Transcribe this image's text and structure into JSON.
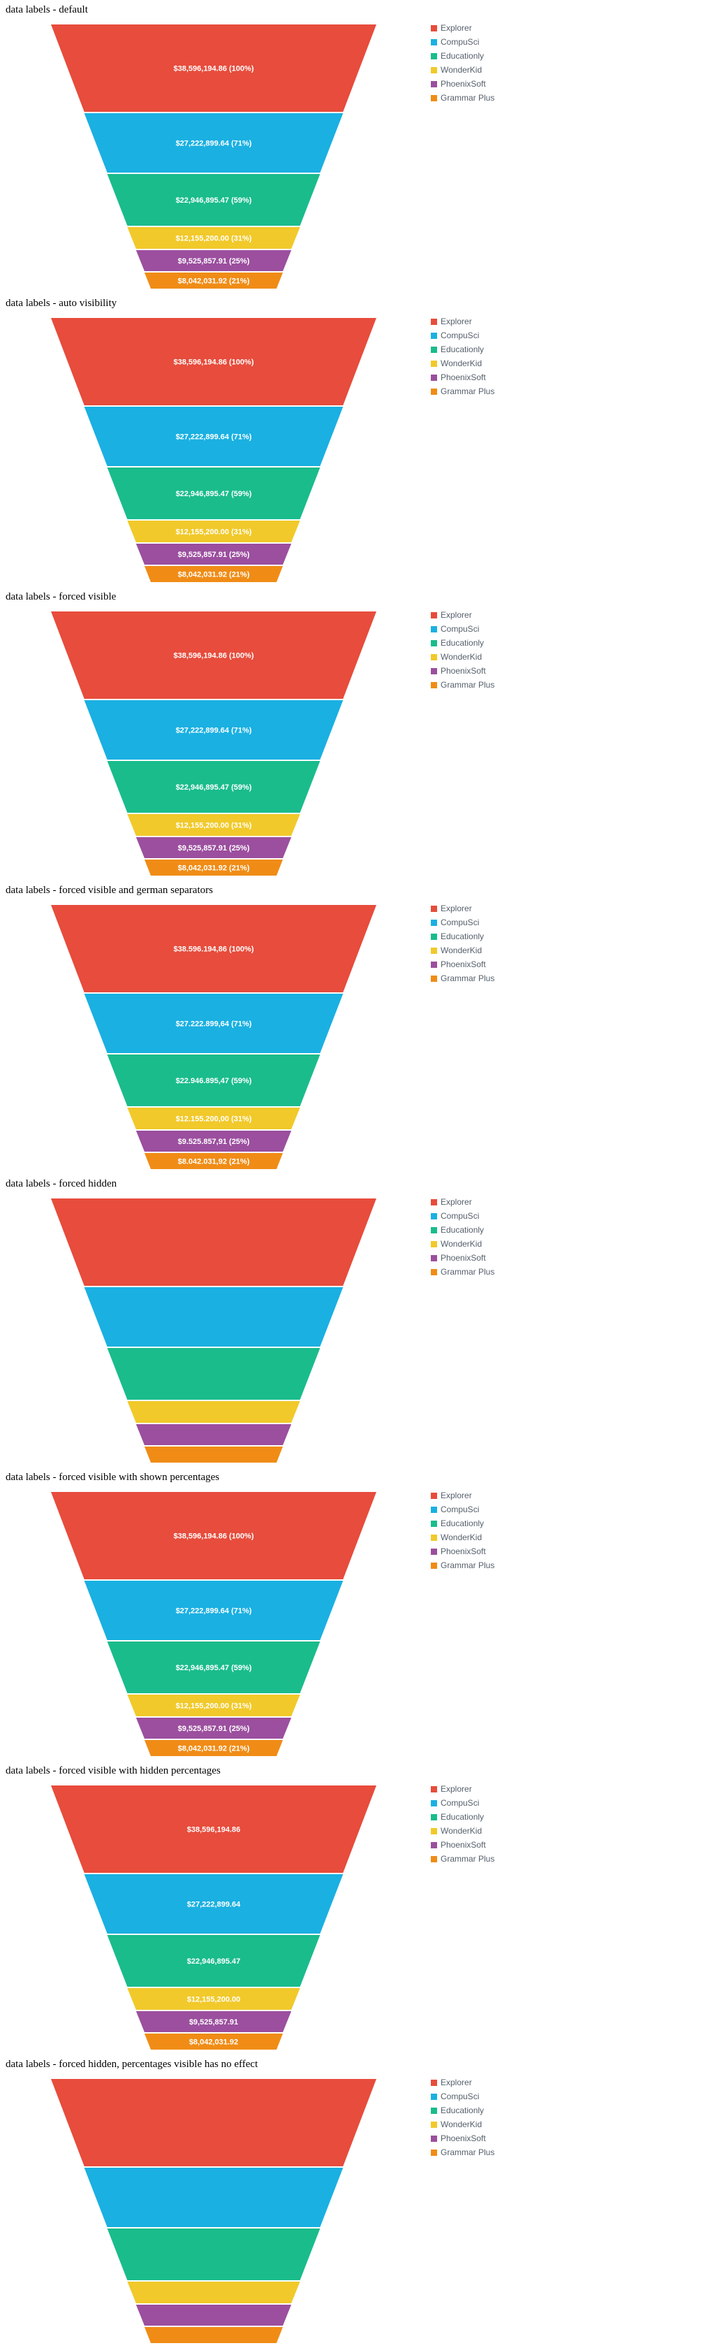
{
  "chart_data": [
    {
      "type": "funnel",
      "title": "data labels - default",
      "categories": [
        "Explorer",
        "CompuSci",
        "Educationly",
        "WonderKid",
        "PhoenixSoft",
        "Grammar Plus"
      ],
      "values": [
        38596194.86,
        27222899.64,
        22946895.47,
        12155200,
        9525857.91,
        8042031.92
      ],
      "percentages": [
        100,
        71,
        59,
        31,
        25,
        21
      ],
      "data_labels": [
        "$38,596,194.86 (100%)",
        "$27,222,899.64 (71%)",
        "$22,946,895.47 (59%)",
        "$12,155,200.00 (31%)",
        "$9,525,857.91 (25%)",
        "$8,042,031.92 (21%)"
      ],
      "show_labels": true,
      "legend": "top-right"
    },
    {
      "type": "funnel",
      "title": "data labels - auto visibility",
      "categories": [
        "Explorer",
        "CompuSci",
        "Educationly",
        "WonderKid",
        "PhoenixSoft",
        "Grammar Plus"
      ],
      "values": [
        38596194.86,
        27222899.64,
        22946895.47,
        12155200,
        9525857.91,
        8042031.92
      ],
      "percentages": [
        100,
        71,
        59,
        31,
        25,
        21
      ],
      "data_labels": [
        "$38,596,194.86 (100%)",
        "$27,222,899.64 (71%)",
        "$22,946,895.47 (59%)",
        "$12,155,200.00 (31%)",
        "$9,525,857.91 (25%)",
        "$8,042,031.92 (21%)"
      ],
      "show_labels": true,
      "legend": "top-right"
    },
    {
      "type": "funnel",
      "title": "data labels - forced visible",
      "categories": [
        "Explorer",
        "CompuSci",
        "Educationly",
        "WonderKid",
        "PhoenixSoft",
        "Grammar Plus"
      ],
      "values": [
        38596194.86,
        27222899.64,
        22946895.47,
        12155200,
        9525857.91,
        8042031.92
      ],
      "percentages": [
        100,
        71,
        59,
        31,
        25,
        21
      ],
      "data_labels": [
        "$38,596,194.86 (100%)",
        "$27,222,899.64 (71%)",
        "$22,946,895.47 (59%)",
        "$12,155,200.00 (31%)",
        "$9,525,857.91 (25%)",
        "$8,042,031.92 (21%)"
      ],
      "show_labels": true,
      "legend": "top-right"
    },
    {
      "type": "funnel",
      "title": "data labels - forced visible and german separators",
      "categories": [
        "Explorer",
        "CompuSci",
        "Educationly",
        "WonderKid",
        "PhoenixSoft",
        "Grammar Plus"
      ],
      "values": [
        38596194.86,
        27222899.64,
        22946895.47,
        12155200,
        9525857.91,
        8042031.92
      ],
      "percentages": [
        100,
        71,
        59,
        31,
        25,
        21
      ],
      "data_labels": [
        "$38.596.194,86 (100%)",
        "$27.222.899,64 (71%)",
        "$22.946.895,47 (59%)",
        "$12.155.200,00 (31%)",
        "$9.525.857,91 (25%)",
        "$8.042.031,92 (21%)"
      ],
      "show_labels": true,
      "legend": "top-right"
    },
    {
      "type": "funnel",
      "title": "data labels - forced hidden",
      "categories": [
        "Explorer",
        "CompuSci",
        "Educationly",
        "WonderKid",
        "PhoenixSoft",
        "Grammar Plus"
      ],
      "values": [
        38596194.86,
        27222899.64,
        22946895.47,
        12155200,
        9525857.91,
        8042031.92
      ],
      "percentages": [
        100,
        71,
        59,
        31,
        25,
        21
      ],
      "data_labels": [],
      "show_labels": false,
      "legend": "top-right"
    },
    {
      "type": "funnel",
      "title": "data labels - forced visible with shown percentages",
      "categories": [
        "Explorer",
        "CompuSci",
        "Educationly",
        "WonderKid",
        "PhoenixSoft",
        "Grammar Plus"
      ],
      "values": [
        38596194.86,
        27222899.64,
        22946895.47,
        12155200,
        9525857.91,
        8042031.92
      ],
      "percentages": [
        100,
        71,
        59,
        31,
        25,
        21
      ],
      "data_labels": [
        "$38,596,194.86 (100%)",
        "$27,222,899.64 (71%)",
        "$22,946,895.47 (59%)",
        "$12,155,200.00 (31%)",
        "$9,525,857.91 (25%)",
        "$8,042,031.92 (21%)"
      ],
      "show_labels": true,
      "legend": "top-right"
    },
    {
      "type": "funnel",
      "title": "data labels - forced visible with hidden percentages",
      "categories": [
        "Explorer",
        "CompuSci",
        "Educationly",
        "WonderKid",
        "PhoenixSoft",
        "Grammar Plus"
      ],
      "values": [
        38596194.86,
        27222899.64,
        22946895.47,
        12155200,
        9525857.91,
        8042031.92
      ],
      "percentages": [
        100,
        71,
        59,
        31,
        25,
        21
      ],
      "data_labels": [
        "$38,596,194.86",
        "$27,222,899.64",
        "$22,946,895.47",
        "$12,155,200.00",
        "$9,525,857.91",
        "$8,042,031.92"
      ],
      "show_labels": true,
      "legend": "top-right"
    },
    {
      "type": "funnel",
      "title": "data labels - forced hidden, percentages visible has no effect",
      "categories": [
        "Explorer",
        "CompuSci",
        "Educationly",
        "WonderKid",
        "PhoenixSoft",
        "Grammar Plus"
      ],
      "values": [
        38596194.86,
        27222899.64,
        22946895.47,
        12155200,
        9525857.91,
        8042031.92
      ],
      "percentages": [
        100,
        71,
        59,
        31,
        25,
        21
      ],
      "data_labels": [],
      "show_labels": false,
      "legend": "top-right"
    }
  ],
  "colors": {
    "Explorer": "#e74c3c",
    "CompuSci": "#1ab0e2",
    "Educationly": "#1abc8c",
    "WonderKid": "#f1c92a",
    "PhoenixSoft": "#9b4f9e",
    "Grammar Plus": "#f08c16",
    "label_text": "#ffffff",
    "legend_text": "#555f6b"
  }
}
